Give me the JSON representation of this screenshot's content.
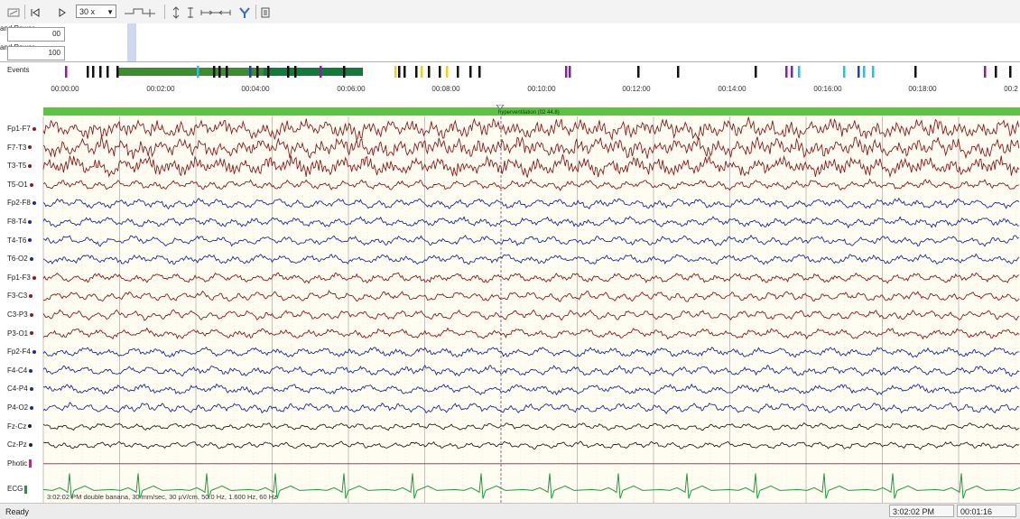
{
  "toolbar": {
    "zoom_value": "30 x",
    "icons": [
      "montage-icon",
      "step-back-icon",
      "play-icon",
      "zoom-dropdown",
      "gain-left-icon",
      "gain-right-icon",
      "sensitivity-up-icon",
      "sensitivity-down-icon",
      "time-scale-icon",
      "filter-icon",
      "grid-icon"
    ]
  },
  "power_rows": [
    {
      "label_line1": "and Power",
      "label_line2": "",
      "value": "00"
    },
    {
      "label_line1": "and Power",
      "label_line2": "",
      "value": "100"
    }
  ],
  "events": {
    "label": "Events",
    "colors": {
      "purple": "#7b2a8e",
      "black": "#111111",
      "green": "#3c8d2f",
      "darkgreen": "#127a3a",
      "cyan": "#39b8d9",
      "yellow": "#f0d21a",
      "blue": "#2244aa"
    }
  },
  "time_axis": {
    "ticks": [
      "00:00:00",
      "00:02:00",
      "00:04:00",
      "00:06:00",
      "00:08:00",
      "00:10:00",
      "00:12:00",
      "00:14:00",
      "00:16:00",
      "00:18:00",
      "00:2"
    ]
  },
  "plot": {
    "event_text": "hyperventilation (02 44.8)",
    "band_color": "#5bc442",
    "channels": [
      {
        "name": "Fp1-F7",
        "color": "#8b1a1a"
      },
      {
        "name": "F7-T3",
        "color": "#8b1a1a"
      },
      {
        "name": "T3-T5",
        "color": "#8b1a1a"
      },
      {
        "name": "T5-O1",
        "color": "#8b1a1a"
      },
      {
        "name": "Fp2-F8",
        "color": "#1c2c99"
      },
      {
        "name": "F8-T4",
        "color": "#1c2c99"
      },
      {
        "name": "T4-T6",
        "color": "#1c2c99"
      },
      {
        "name": "T6-O2",
        "color": "#1c2c99"
      },
      {
        "name": "Fp1-F3",
        "color": "#8b1a1a"
      },
      {
        "name": "F3-C3",
        "color": "#8b1a1a"
      },
      {
        "name": "C3-P3",
        "color": "#8b1a1a"
      },
      {
        "name": "P3-O1",
        "color": "#8b1a1a"
      },
      {
        "name": "Fp2-F4",
        "color": "#1c2c99"
      },
      {
        "name": "F4-C4",
        "color": "#1c2c99"
      },
      {
        "name": "C4-P4",
        "color": "#1c2c99"
      },
      {
        "name": "P4-O2",
        "color": "#1c2c99"
      },
      {
        "name": "Fz-Cz",
        "color": "#222222"
      },
      {
        "name": "Cz-Pz",
        "color": "#222222"
      },
      {
        "name": "Photic",
        "color": "#b0307a"
      },
      {
        "name": "ECG",
        "color": "#1f9a3a"
      }
    ],
    "info_text": "3:02:02 PM double banana, 30 mm/sec, 30 µV/cm, 50.0 Hz, 1.600 Hz, 60 Hz"
  },
  "status_bar": {
    "ready": "Ready",
    "clock": "3:02:02 PM",
    "elapsed": "00:01:16"
  }
}
